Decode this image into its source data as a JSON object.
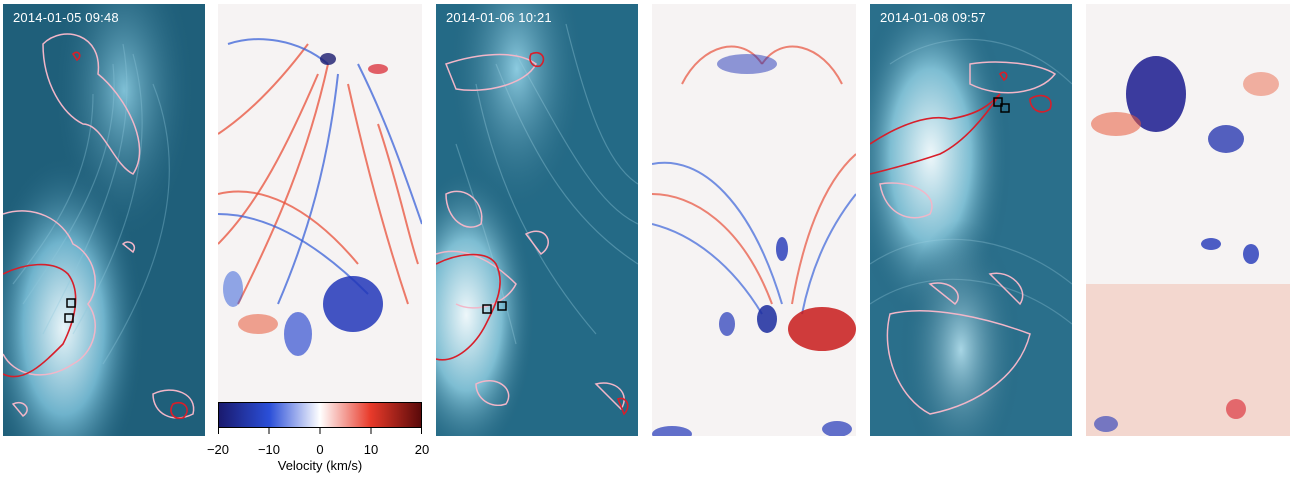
{
  "panels": [
    {
      "kind": "intensity",
      "timestamp": "2014-01-05 09:48"
    },
    {
      "kind": "velocity"
    },
    {
      "kind": "intensity",
      "timestamp": "2014-01-06 10:21"
    },
    {
      "kind": "velocity"
    },
    {
      "kind": "intensity",
      "timestamp": "2014-01-08 09:57"
    },
    {
      "kind": "velocity"
    }
  ],
  "colorbar": {
    "title": "Velocity (km/s)",
    "tick_labels": [
      "−20",
      "−10",
      "0",
      "10",
      "20"
    ],
    "range": [
      -20,
      20
    ],
    "colors": [
      "#1a1a6e",
      "#2b4fd8",
      "#ffffff",
      "#e83a2a",
      "#5a0a0a"
    ]
  },
  "colors": {
    "intensity_base": "#1f5f7a",
    "intensity_light": "#cfe6ee",
    "contour_pink": "#f2b6c8",
    "contour_red": "#d81e2a"
  }
}
